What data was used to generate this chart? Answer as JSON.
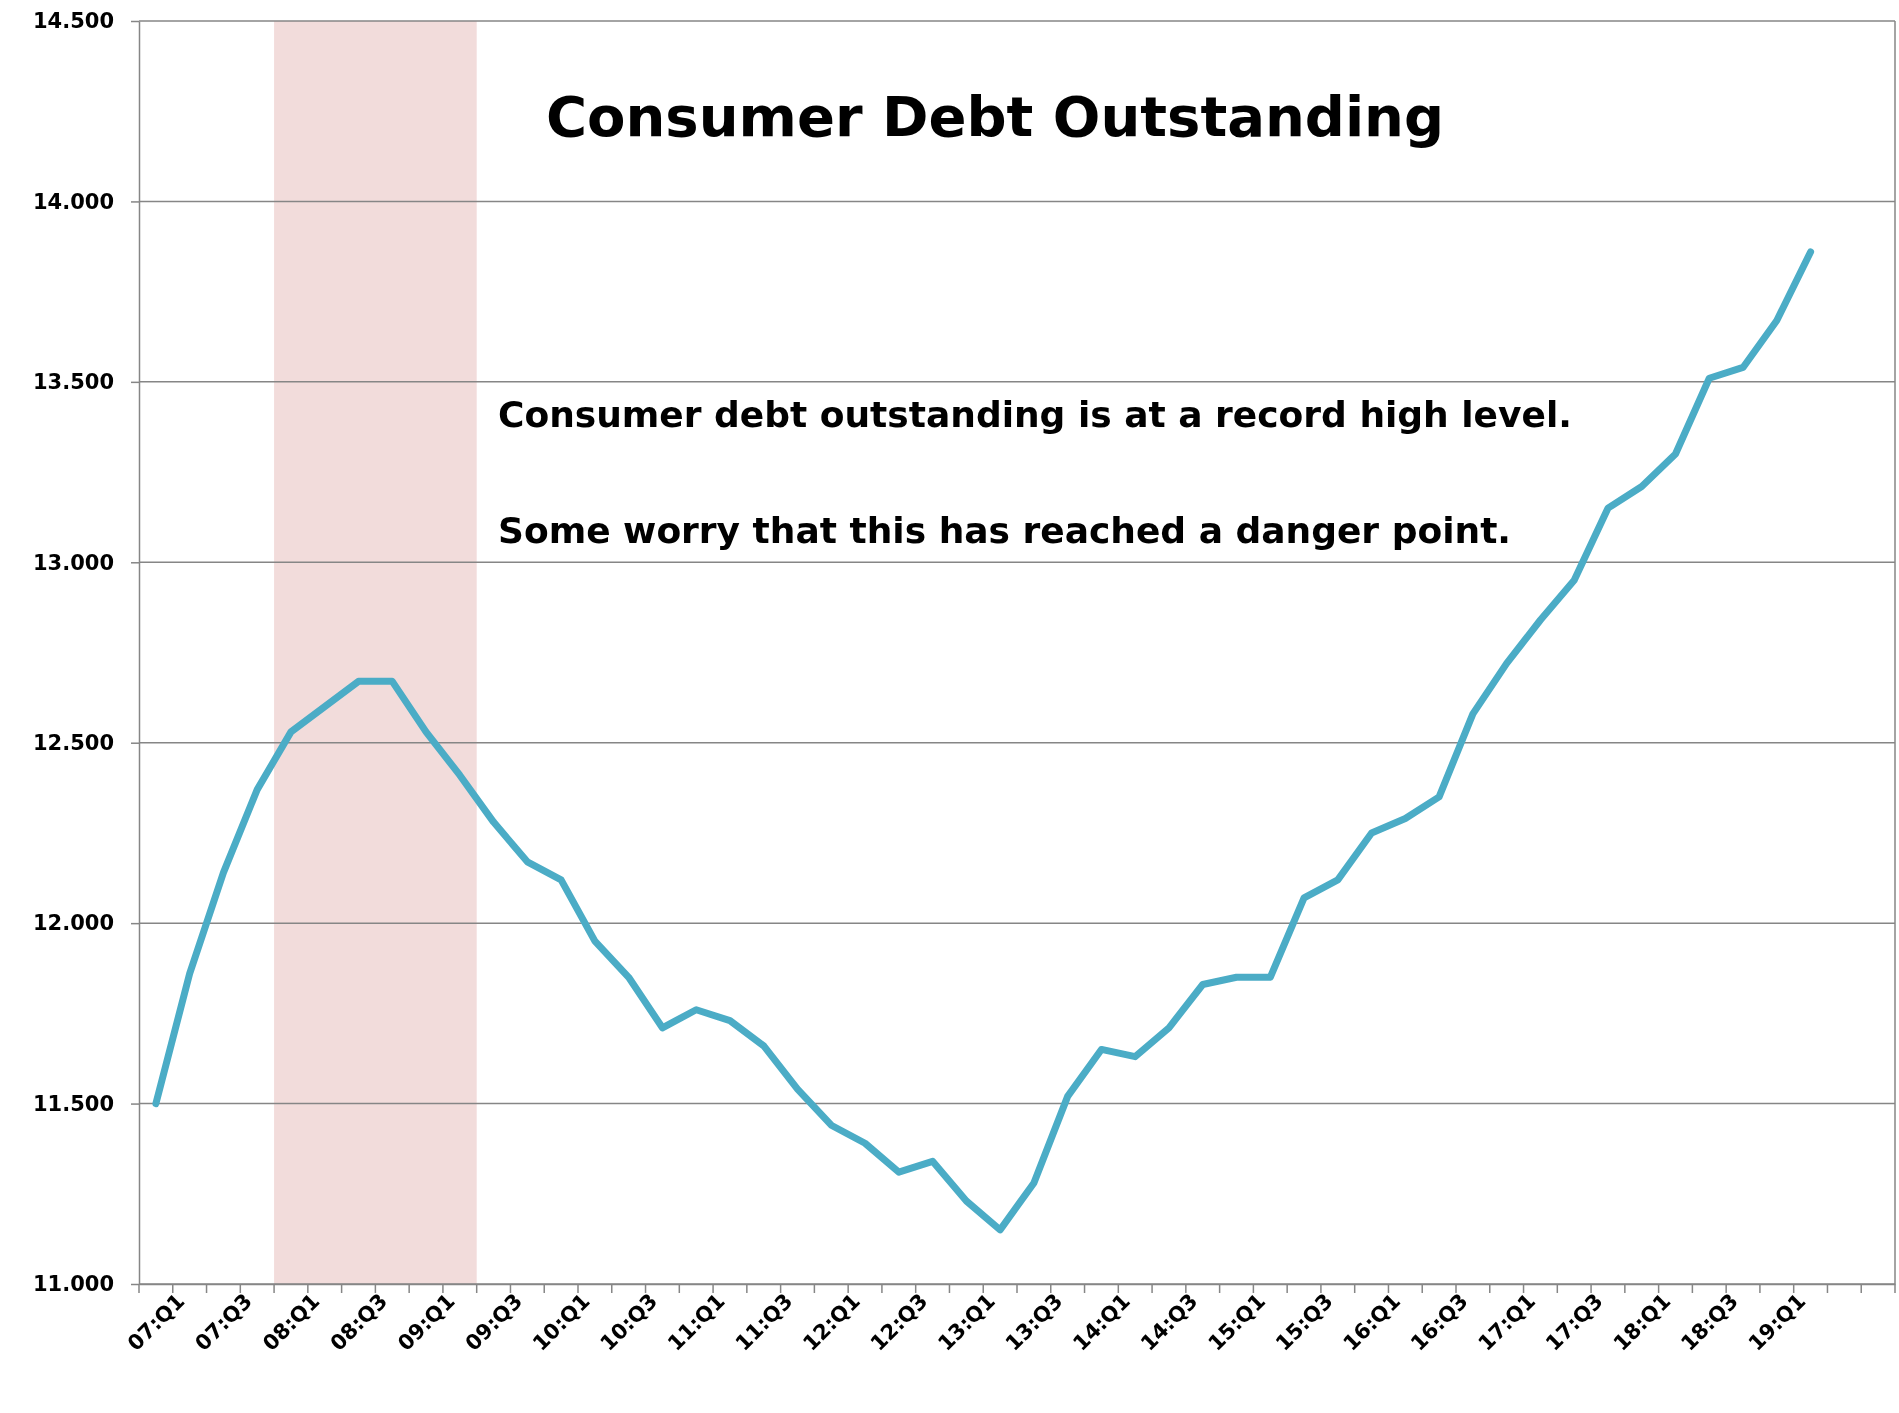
{
  "chart_data": {
    "type": "line",
    "title": "Consumer Debt Outstanding",
    "annotations": [
      "Consumer debt outstanding is at a record high level.",
      "Some worry that this has reached a danger point."
    ],
    "categories": [
      "07:Q1",
      null,
      "07:Q3",
      null,
      "08:Q1",
      null,
      "08:Q3",
      null,
      "09:Q1",
      null,
      "09:Q3",
      null,
      "10:Q1",
      null,
      "10:Q3",
      null,
      "11:Q1",
      null,
      "11:Q3",
      null,
      "12:Q1",
      null,
      "12:Q3",
      null,
      "13:Q1",
      null,
      "13:Q3",
      null,
      "14:Q1",
      null,
      "14:Q3",
      null,
      "15:Q1",
      null,
      "15:Q3",
      null,
      "16:Q1",
      null,
      "16:Q3",
      null,
      "17:Q1",
      null,
      "17:Q3",
      null,
      "18:Q1",
      null,
      "18:Q3",
      null,
      "19:Q1",
      null,
      null,
      null
    ],
    "series": [
      {
        "color": "#4bacc6",
        "values": [
          11.5,
          11.86,
          12.14,
          12.37,
          12.53,
          12.6,
          12.67,
          12.67,
          12.53,
          12.41,
          12.28,
          12.17,
          12.12,
          11.95,
          11.85,
          11.71,
          11.76,
          11.73,
          11.66,
          11.54,
          11.44,
          11.39,
          11.31,
          11.34,
          11.23,
          11.15,
          11.28,
          11.52,
          11.65,
          11.63,
          11.71,
          11.83,
          11.85,
          11.85,
          12.07,
          12.12,
          12.25,
          12.29,
          12.35,
          12.58,
          12.72,
          12.84,
          12.95,
          13.15,
          13.21,
          13.3,
          13.51,
          13.54,
          13.67,
          13.86,
          null,
          null
        ]
      }
    ],
    "ylim": [
      11,
      14.5
    ],
    "yticks": [
      {
        "value": 11,
        "label": "11.000"
      },
      {
        "value": 11.5,
        "label": "11.500"
      },
      {
        "value": 12,
        "label": "12.000"
      },
      {
        "value": 12.5,
        "label": "12.500"
      },
      {
        "value": 13,
        "label": "13.000"
      },
      {
        "value": 13.5,
        "label": "13.500"
      },
      {
        "value": 14,
        "label": "14.000"
      },
      {
        "value": 14.5,
        "label": "14.500"
      }
    ],
    "grid": "y",
    "marker": "none",
    "line_style": "solid",
    "bands": [
      {
        "axis": "x",
        "from": "08:Q1",
        "to": "09:Q3",
        "color": "#f2dcdb"
      }
    ]
  }
}
